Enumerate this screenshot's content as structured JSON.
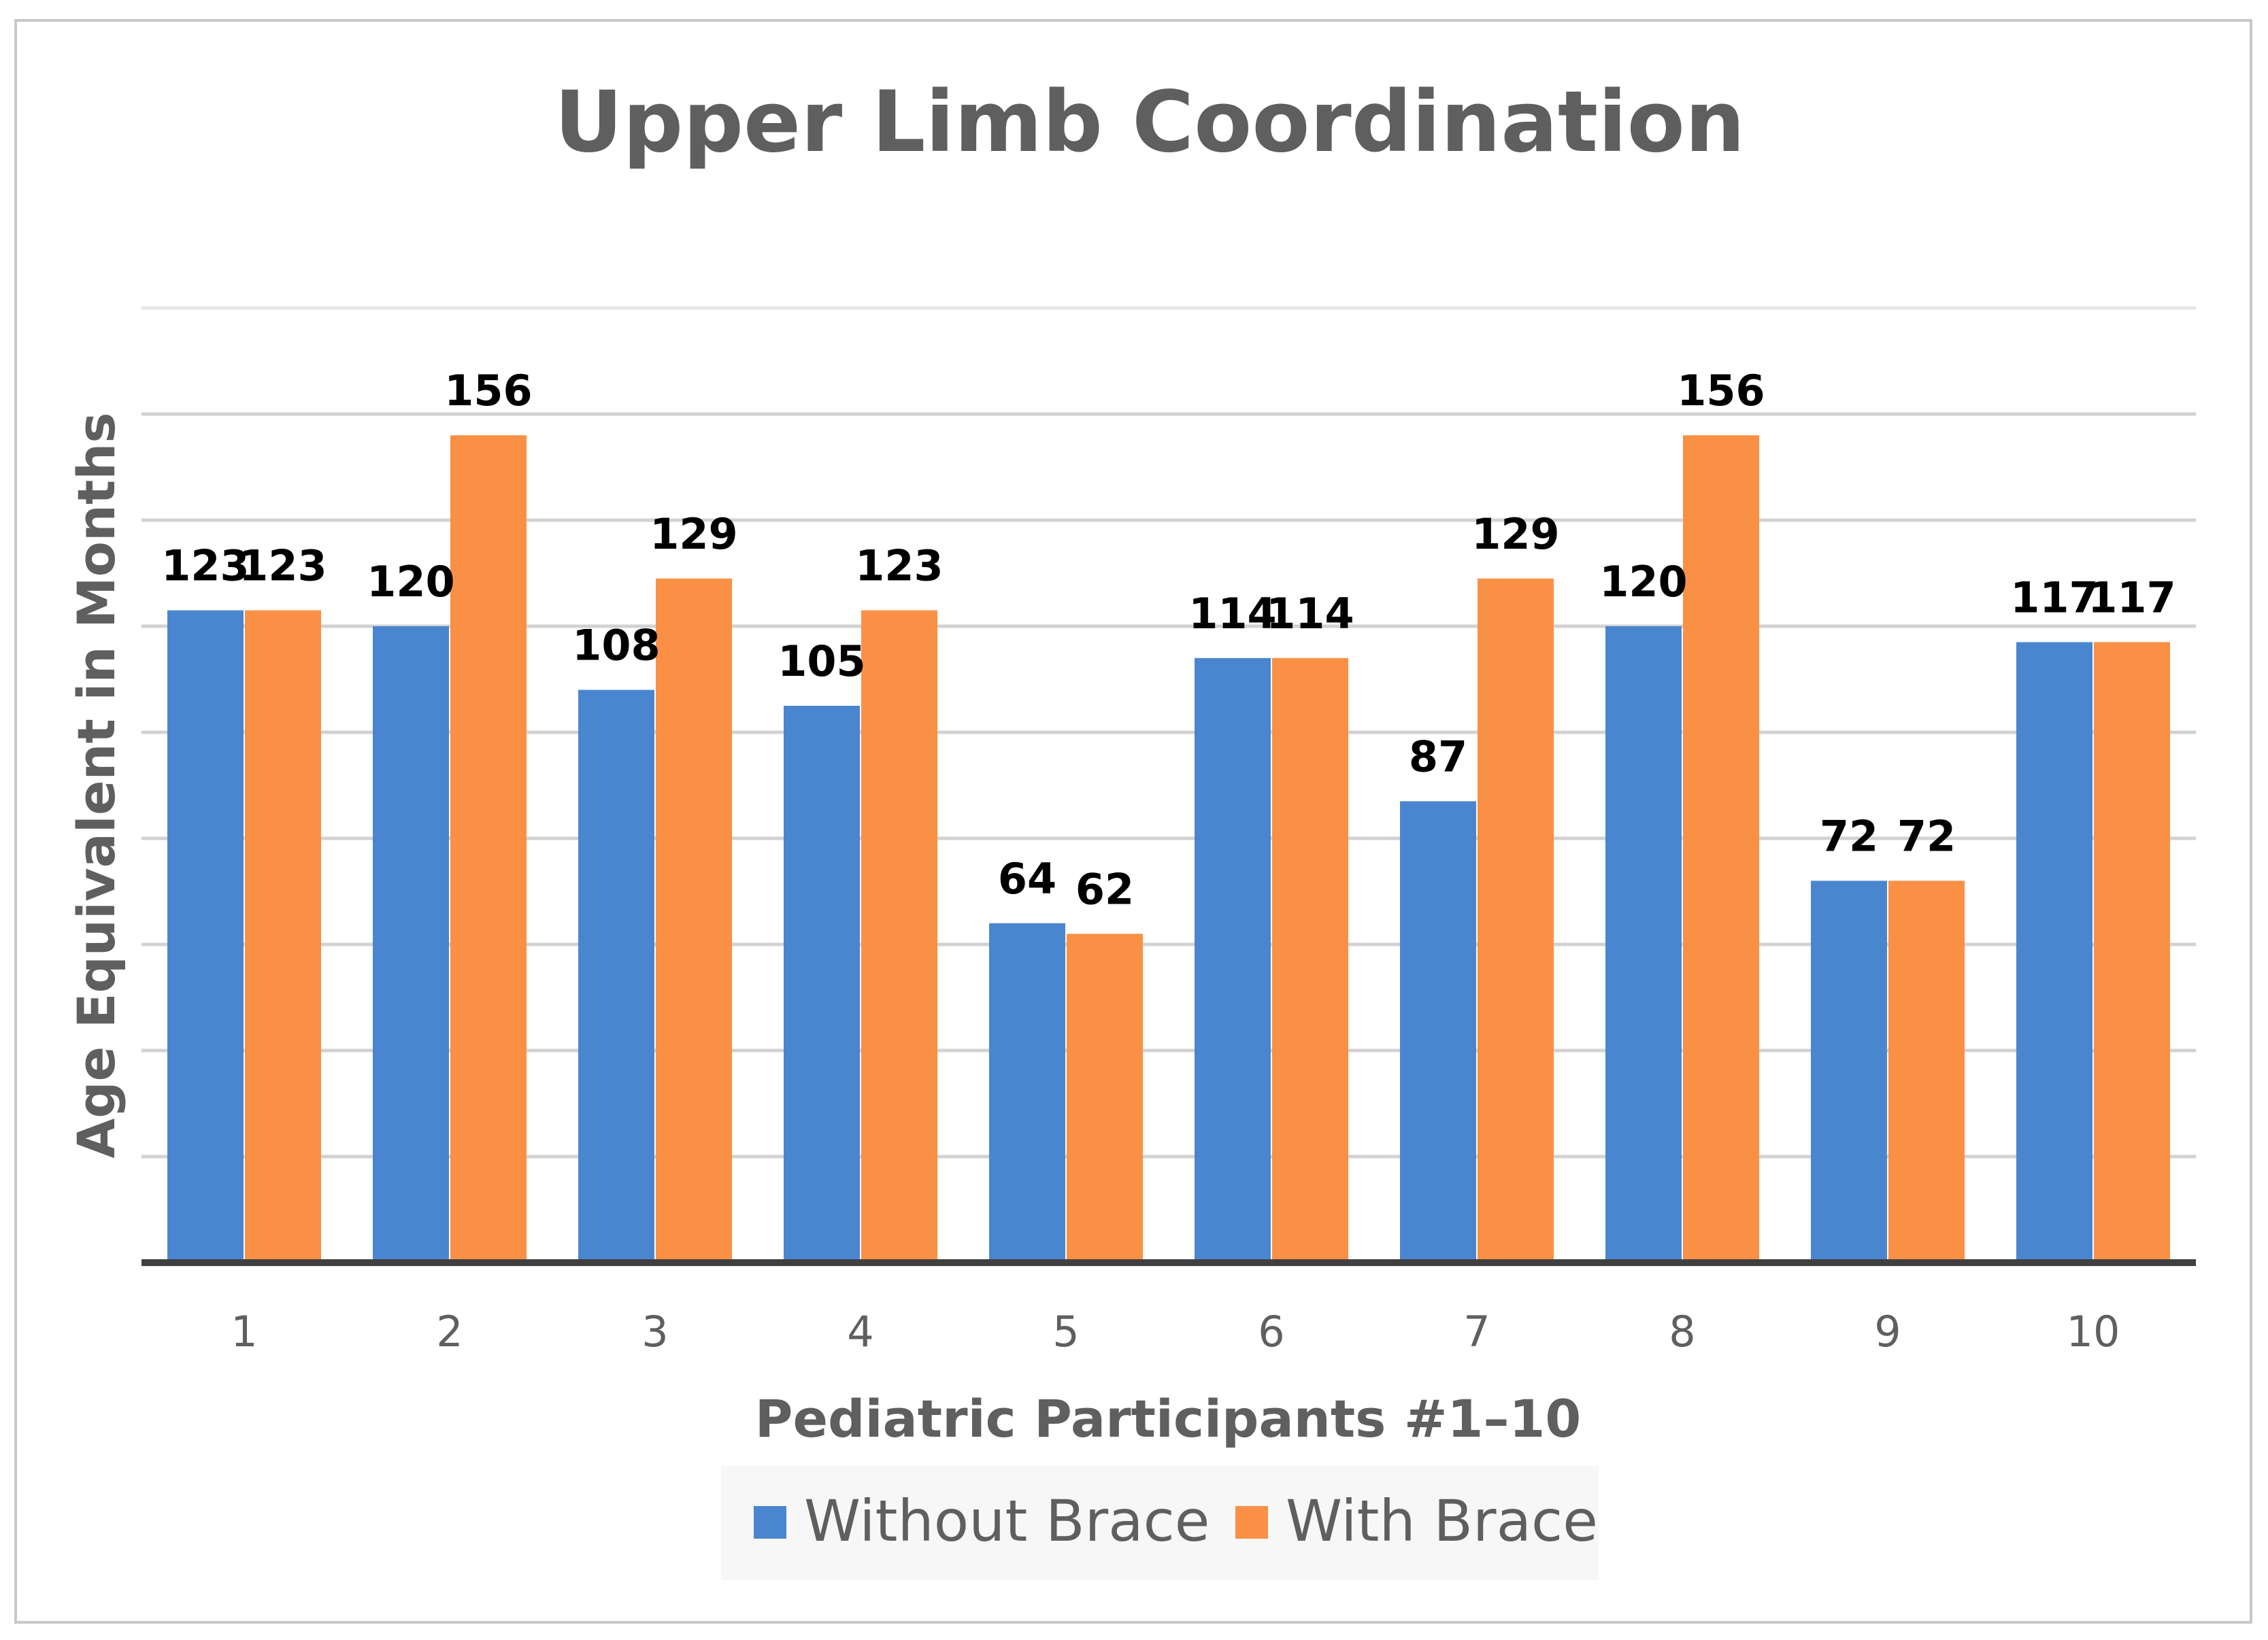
{
  "chart_data": {
    "type": "bar",
    "title": "Upper Limb Coordination",
    "xlabel": "Pediatric Participants #1–10",
    "ylabel": "Age Equivalent in Months",
    "categories": [
      "1",
      "2",
      "3",
      "4",
      "5",
      "6",
      "7",
      "8",
      "9",
      "10"
    ],
    "series": [
      {
        "name": "Without Brace",
        "color": "#4a86d0",
        "values": [
          123,
          120,
          108,
          105,
          64,
          114,
          87,
          120,
          72,
          117
        ]
      },
      {
        "name": "With Brace",
        "color": "#f99046",
        "values": [
          123,
          156,
          129,
          123,
          62,
          114,
          129,
          156,
          72,
          117
        ]
      }
    ],
    "ylim": [
      0,
      180
    ],
    "grid": true,
    "y_tick_labels_shown": false,
    "data_labels": true,
    "legend_position": "bottom"
  }
}
